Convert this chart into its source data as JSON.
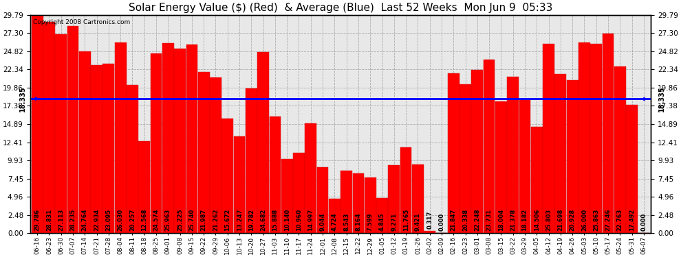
{
  "title": "Solar Energy Value ($) (Red)  & Average (Blue)  Last 52 Weeks  Mon Jun 9  05:33",
  "copyright": "Copyright 2008 Cartronics.com",
  "average": 18.335,
  "bar_color": "#FF0000",
  "avg_line_color": "#0000FF",
  "bg_color": "#FFFFFF",
  "plot_bg_color": "#E8E8E8",
  "grid_color": "#AAAAAA",
  "categories": [
    "06-16",
    "06-23",
    "06-30",
    "07-07",
    "07-14",
    "07-21",
    "07-28",
    "08-04",
    "08-11",
    "08-18",
    "08-25",
    "09-01",
    "09-08",
    "09-15",
    "09-22",
    "09-29",
    "10-06",
    "10-13",
    "10-20",
    "10-27",
    "11-03",
    "11-10",
    "11-17",
    "11-24",
    "12-01",
    "12-08",
    "12-15",
    "12-22",
    "12-29",
    "01-05",
    "01-12",
    "01-19",
    "01-26",
    "02-02",
    "02-09",
    "02-16",
    "02-23",
    "03-01",
    "03-08",
    "03-15",
    "03-22",
    "03-29",
    "04-05",
    "04-12",
    "04-19",
    "04-26",
    "05-03",
    "05-10",
    "05-17",
    "05-24",
    "05-31",
    "06-07"
  ],
  "values": [
    29.786,
    28.831,
    27.113,
    28.235,
    24.764,
    22.934,
    23.095,
    26.03,
    20.257,
    12.568,
    24.574,
    25.963,
    25.225,
    25.74,
    21.987,
    21.262,
    15.672,
    13.247,
    19.782,
    24.682,
    15.888,
    10.14,
    10.96,
    14.997,
    9.044,
    4.724,
    8.543,
    8.164,
    7.599,
    4.845,
    9.271,
    11.765,
    9.421,
    0.317,
    0.0,
    21.847,
    20.338,
    22.248,
    23.731,
    18.004,
    21.378,
    18.182,
    14.506,
    25.803,
    21.698,
    20.928,
    26.0,
    25.863,
    27.246,
    22.763,
    17.492,
    0.0
  ],
  "ylim": [
    0,
    29.79
  ],
  "yticks": [
    0.0,
    2.48,
    4.96,
    7.45,
    9.93,
    12.41,
    14.89,
    17.38,
    19.86,
    22.34,
    24.82,
    27.3,
    29.79
  ],
  "avg_label": "18.335",
  "avg_line_lw": 2.0,
  "label_fontsize": 6.0,
  "xtick_fontsize": 6.5,
  "ytick_fontsize": 7.5,
  "title_fontsize": 11
}
